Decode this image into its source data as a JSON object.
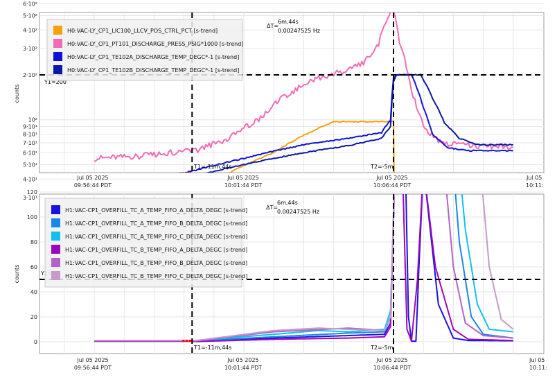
{
  "colors": {
    "grid": "#e6e6e6",
    "axis": "#9a9a9a",
    "orange": "#f5a10e",
    "pink": "#f26bb6",
    "blue1": "#1010d8",
    "blue2": "#0a18a8",
    "b_ta": "#1a12e0",
    "b_tb": "#1a86e8",
    "b_tc": "#10c0ee",
    "b_ba": "#9b08b8",
    "b_bb": "#b562c8",
    "b_bc": "#c49ac8",
    "cursor": "#000000",
    "marker": "#ff0000",
    "legend_bg": "#f0f0f0"
  },
  "time_axis": {
    "labels": [
      {
        "date": "Jul 05 2025",
        "time": "09:56:44 PDT"
      },
      {
        "date": "Jul 05 2025",
        "time": "10:01:44 PDT"
      },
      {
        "date": "Jul 05 2025",
        "time": "10:06:44 PDT"
      },
      {
        "date": "Jul 05",
        "time": "10:11:"
      }
    ]
  },
  "top": {
    "ylabel": "counts",
    "yticks": [
      "6·10²",
      "5·10²",
      "4·10²",
      "3·10²",
      "2·10²",
      "10²",
      "9·10¹",
      "8·10¹",
      "7·10¹",
      "6·10¹",
      "5·10¹",
      "4·10¹",
      "3·10¹"
    ],
    "cursor_label": "Y1=200",
    "t1_label": "T1=-11m,44s",
    "t2_label": "T2=-5m",
    "delta_label": "ΔT=",
    "delta_time": "6m,44s",
    "delta_freq": "0.00247525 Hz",
    "legend": [
      "H0:VAC-LY_CP1_LIC100_LLCV_POS_CTRL_PCT [s-trend]",
      "H0:VAC-LY_CP1_PT101_DISCHARGE_PRESS_PSIG*1000 [s-trend]",
      "H0:VAC-LY_CP1_TE102A_DISCHARGE_TEMP_DEGC*-1 [s-trend]",
      "H0:VAC-LY_CP1_TE102B_DISCHARGE_TEMP_DEGC*-1 [s-trend]"
    ]
  },
  "bottom": {
    "ylabel": "counts",
    "yticks": [
      "120",
      "100",
      "80",
      "60",
      "40",
      "20",
      "0"
    ],
    "cursor_label": "Y1=50",
    "t1_label": "T1=-11m,44s",
    "t2_label": "T2=-5m",
    "delta_label": "ΔT=",
    "delta_time": "6m,44s",
    "delta_freq": "0.00247525 Hz",
    "legend": [
      "H1:VAC-CP1_OVERFILL_TC_A_TEMP_FIFO_A_DELTA_DEGC [s-trend]",
      "H1:VAC-CP1_OVERFILL_TC_A_TEMP_FIFO_B_DELTA_DEGC [s-trend]",
      "H1:VAC-CP1_OVERFILL_TC_A_TEMP_FIFO_C_DELTA_DEGC [s-trend]",
      "H1:VAC-CP1_OVERFILL_TC_B_TEMP_FIFO_A_DELTA_DEGC [s-trend]",
      "H1:VAC-CP1_OVERFILL_TC_B_TEMP_FIFO_B_DELTA_DEGC [s-trend]",
      "H1:VAC-CP1_OVERFILL_TC_B_TEMP_FIFO_C_DELTA_DEGC [s-trend]"
    ]
  },
  "chart_data": [
    {
      "type": "line",
      "ylabel": "counts",
      "yscale": "log",
      "ylim": [
        28,
        640
      ],
      "x_unit": "minutes relative to 10:06:44 PDT",
      "xlim": [
        -10,
        4.0
      ],
      "cursor_y": 200,
      "cursor_x": [
        -6.73,
        0
      ],
      "series": [
        {
          "name": "H0:VAC-LY_CP1_LIC100_LLCV_POS_CTRL_PCT [s-trend]",
          "color": "orange",
          "x": [
            -10,
            -6.8,
            -6.5,
            -4,
            -2,
            -0.1,
            0,
            0.02,
            4.0
          ],
          "y": [
            33,
            33,
            33,
            60,
            97,
            97,
            97,
            33,
            33
          ]
        },
        {
          "name": "H0:VAC-LY_CP1_PT101_DISCHARGE_PRESS_PSIG*1000 [s-trend]",
          "color": "pink",
          "x": [
            -10,
            -8.5,
            -7.5,
            -7,
            -6.6,
            -5.5,
            -4.5,
            -3.5,
            -2.5,
            -1.5,
            -1.0,
            -0.5,
            -0.2,
            0,
            0.2,
            0.6,
            1.0,
            1.5,
            2.0,
            3.0,
            4.0
          ],
          "y": [
            55,
            57,
            60,
            61,
            62,
            75,
            100,
            150,
            190,
            215,
            240,
            320,
            490,
            540,
            330,
            150,
            90,
            72,
            68,
            67,
            65
          ]
        },
        {
          "name": "H0:VAC-LY_CP1_TE102A_DISCHARGE_TEMP_DEGC*-1 [s-trend]",
          "color": "blue1",
          "x": [
            -10,
            -7,
            -6.6,
            -5,
            -3,
            -1.5,
            -0.4,
            -0.1,
            0,
            0.1,
            0.6,
            1.0,
            1.3,
            1.8,
            2.5,
            4.0
          ],
          "y": [
            40,
            44,
            46,
            55,
            68,
            75,
            82,
            100,
            190,
            200,
            200,
            120,
            80,
            65,
            62,
            62
          ]
        },
        {
          "name": "H0:VAC-LY_CP1_TE102B_DISCHARGE_TEMP_DEGC*-1 [s-trend]",
          "color": "blue2",
          "x": [
            -10,
            -7,
            -6.6,
            -5,
            -3,
            -1.5,
            -0.4,
            -0.1,
            0,
            0.1,
            0.9,
            1.3,
            1.7,
            2.2,
            2.8,
            4.0
          ],
          "y": [
            37,
            40,
            42,
            50,
            60,
            67,
            75,
            90,
            180,
            200,
            200,
            140,
            95,
            75,
            68,
            68
          ]
        }
      ]
    },
    {
      "type": "line",
      "ylabel": "counts",
      "ylim": [
        -10,
        120
      ],
      "x_unit": "minutes relative to 10:06:44 PDT",
      "xlim": [
        -10,
        4.0
      ],
      "cursor_y": 50,
      "cursor_x": [
        -6.73,
        0
      ],
      "series": [
        {
          "name": "H1:VAC-CP1_OVERFILL_TC_A_TEMP_FIFO_A_DELTA_DEGC [s-trend]",
          "color": "b_ta",
          "x": [
            -10,
            -6.8,
            -6.6,
            -4,
            -1.5,
            -0.3,
            -0.1,
            0.05,
            0.4,
            0.5,
            0.6,
            0.75,
            0.85,
            1.0,
            1.5,
            2.0,
            2.5,
            4.0
          ],
          "y": [
            0.5,
            0.5,
            0.3,
            3,
            5,
            6,
            15,
            140,
            140,
            20,
            0.5,
            0.5,
            60,
            140,
            30,
            3,
            1,
            0.8
          ]
        },
        {
          "name": "H1:VAC-CP1_OVERFILL_TC_A_TEMP_FIFO_B_DELTA_DEGC [s-trend]",
          "color": "b_tb",
          "x": [
            -10,
            -6.8,
            -6.6,
            -4,
            -1.5,
            -0.3,
            -0.1,
            0.05,
            2.0,
            2.2,
            2.6,
            3.0,
            4.0
          ],
          "y": [
            1,
            1,
            0.8,
            4,
            7,
            8,
            20,
            140,
            140,
            80,
            20,
            6,
            3
          ]
        },
        {
          "name": "H1:VAC-CP1_OVERFILL_TC_A_TEMP_FIFO_C_DELTA_DEGC [s-trend]",
          "color": "b_tc",
          "x": [
            -10,
            -6.8,
            -6.6,
            -4,
            -2.5,
            -1.5,
            -0.3,
            -0.1,
            0.05,
            2.2,
            2.4,
            2.8,
            3.2,
            4.0
          ],
          "y": [
            1,
            1,
            1,
            6,
            9,
            8,
            10,
            25,
            140,
            140,
            90,
            30,
            10,
            8
          ]
        },
        {
          "name": "H1:VAC-CP1_OVERFILL_TC_B_TEMP_FIFO_A_DELTA_DEGC [s-trend]",
          "color": "b_ba",
          "x": [
            -10,
            -6.8,
            -6.6,
            -4,
            -1.5,
            -0.3,
            -0.1,
            0.05,
            0.3,
            0.45,
            0.6,
            0.8,
            1.0,
            1.4,
            2.0,
            2.5,
            4.0
          ],
          "y": [
            0.5,
            0.5,
            0.2,
            2,
            3,
            4,
            12,
            140,
            140,
            10,
            0.5,
            50,
            140,
            60,
            10,
            2,
            1
          ]
        },
        {
          "name": "H1:VAC-CP1_OVERFILL_TC_B_TEMP_FIFO_B_DELTA_DEGC [s-trend]",
          "color": "b_bb",
          "x": [
            -10,
            -6.8,
            -6.6,
            -4,
            -1.5,
            -0.3,
            -0.1,
            0.05,
            1.7,
            2.0,
            2.4,
            3.0,
            4.0
          ],
          "y": [
            1,
            1,
            0.8,
            8,
            11,
            9,
            20,
            140,
            140,
            60,
            15,
            5,
            3
          ]
        },
        {
          "name": "H1:VAC-CP1_OVERFILL_TC_B_TEMP_FIFO_C_DELTA_DEGC [s-trend]",
          "color": "b_bc",
          "x": [
            -10,
            -6.8,
            -6.6,
            -4,
            -2.5,
            -1.5,
            -0.3,
            -0.1,
            0.05,
            2.9,
            3.2,
            3.6,
            4.0
          ],
          "y": [
            1,
            1,
            1,
            9,
            11,
            10,
            9,
            20,
            140,
            140,
            60,
            18,
            10
          ]
        }
      ]
    }
  ]
}
